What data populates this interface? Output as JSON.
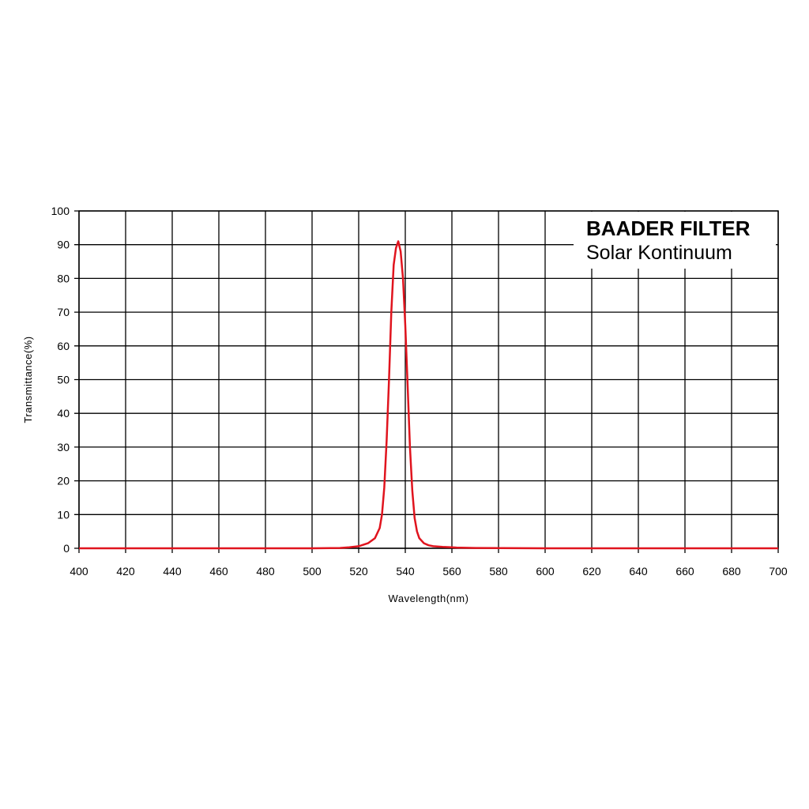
{
  "chart_data": {
    "type": "line",
    "xlabel": "Wavelength(nm)",
    "ylabel": "Transmittance(%)",
    "xlim": [
      400,
      700
    ],
    "ylim": [
      0,
      100
    ],
    "xticks": [
      400,
      420,
      440,
      460,
      480,
      500,
      520,
      540,
      560,
      580,
      600,
      620,
      640,
      660,
      680,
      700
    ],
    "yticks": [
      0,
      10,
      20,
      30,
      40,
      50,
      60,
      70,
      80,
      90,
      100
    ],
    "grid": true,
    "legend_placement": "top-right",
    "legend": {
      "title": "BAADER FILTER",
      "subtitle": "Solar Kontinuum"
    },
    "series": [
      {
        "color": "#e0141e",
        "x": [
          400,
          500,
          512,
          516,
          520,
          524,
          527,
          529,
          530,
          531,
          532,
          533,
          534,
          535,
          536,
          537,
          538,
          539,
          540,
          541,
          542,
          543,
          544,
          545,
          546,
          548,
          550,
          552,
          556,
          560,
          562,
          570,
          600,
          650,
          700
        ],
        "y": [
          0,
          0,
          0.1,
          0.3,
          0.6,
          1.5,
          3,
          6,
          10,
          18,
          32,
          50,
          70,
          84,
          89,
          91,
          88,
          80,
          66,
          48,
          30,
          17,
          9,
          5,
          3,
          1.5,
          0.9,
          0.6,
          0.4,
          0.3,
          0.2,
          0.1,
          0,
          0,
          0
        ]
      }
    ]
  }
}
